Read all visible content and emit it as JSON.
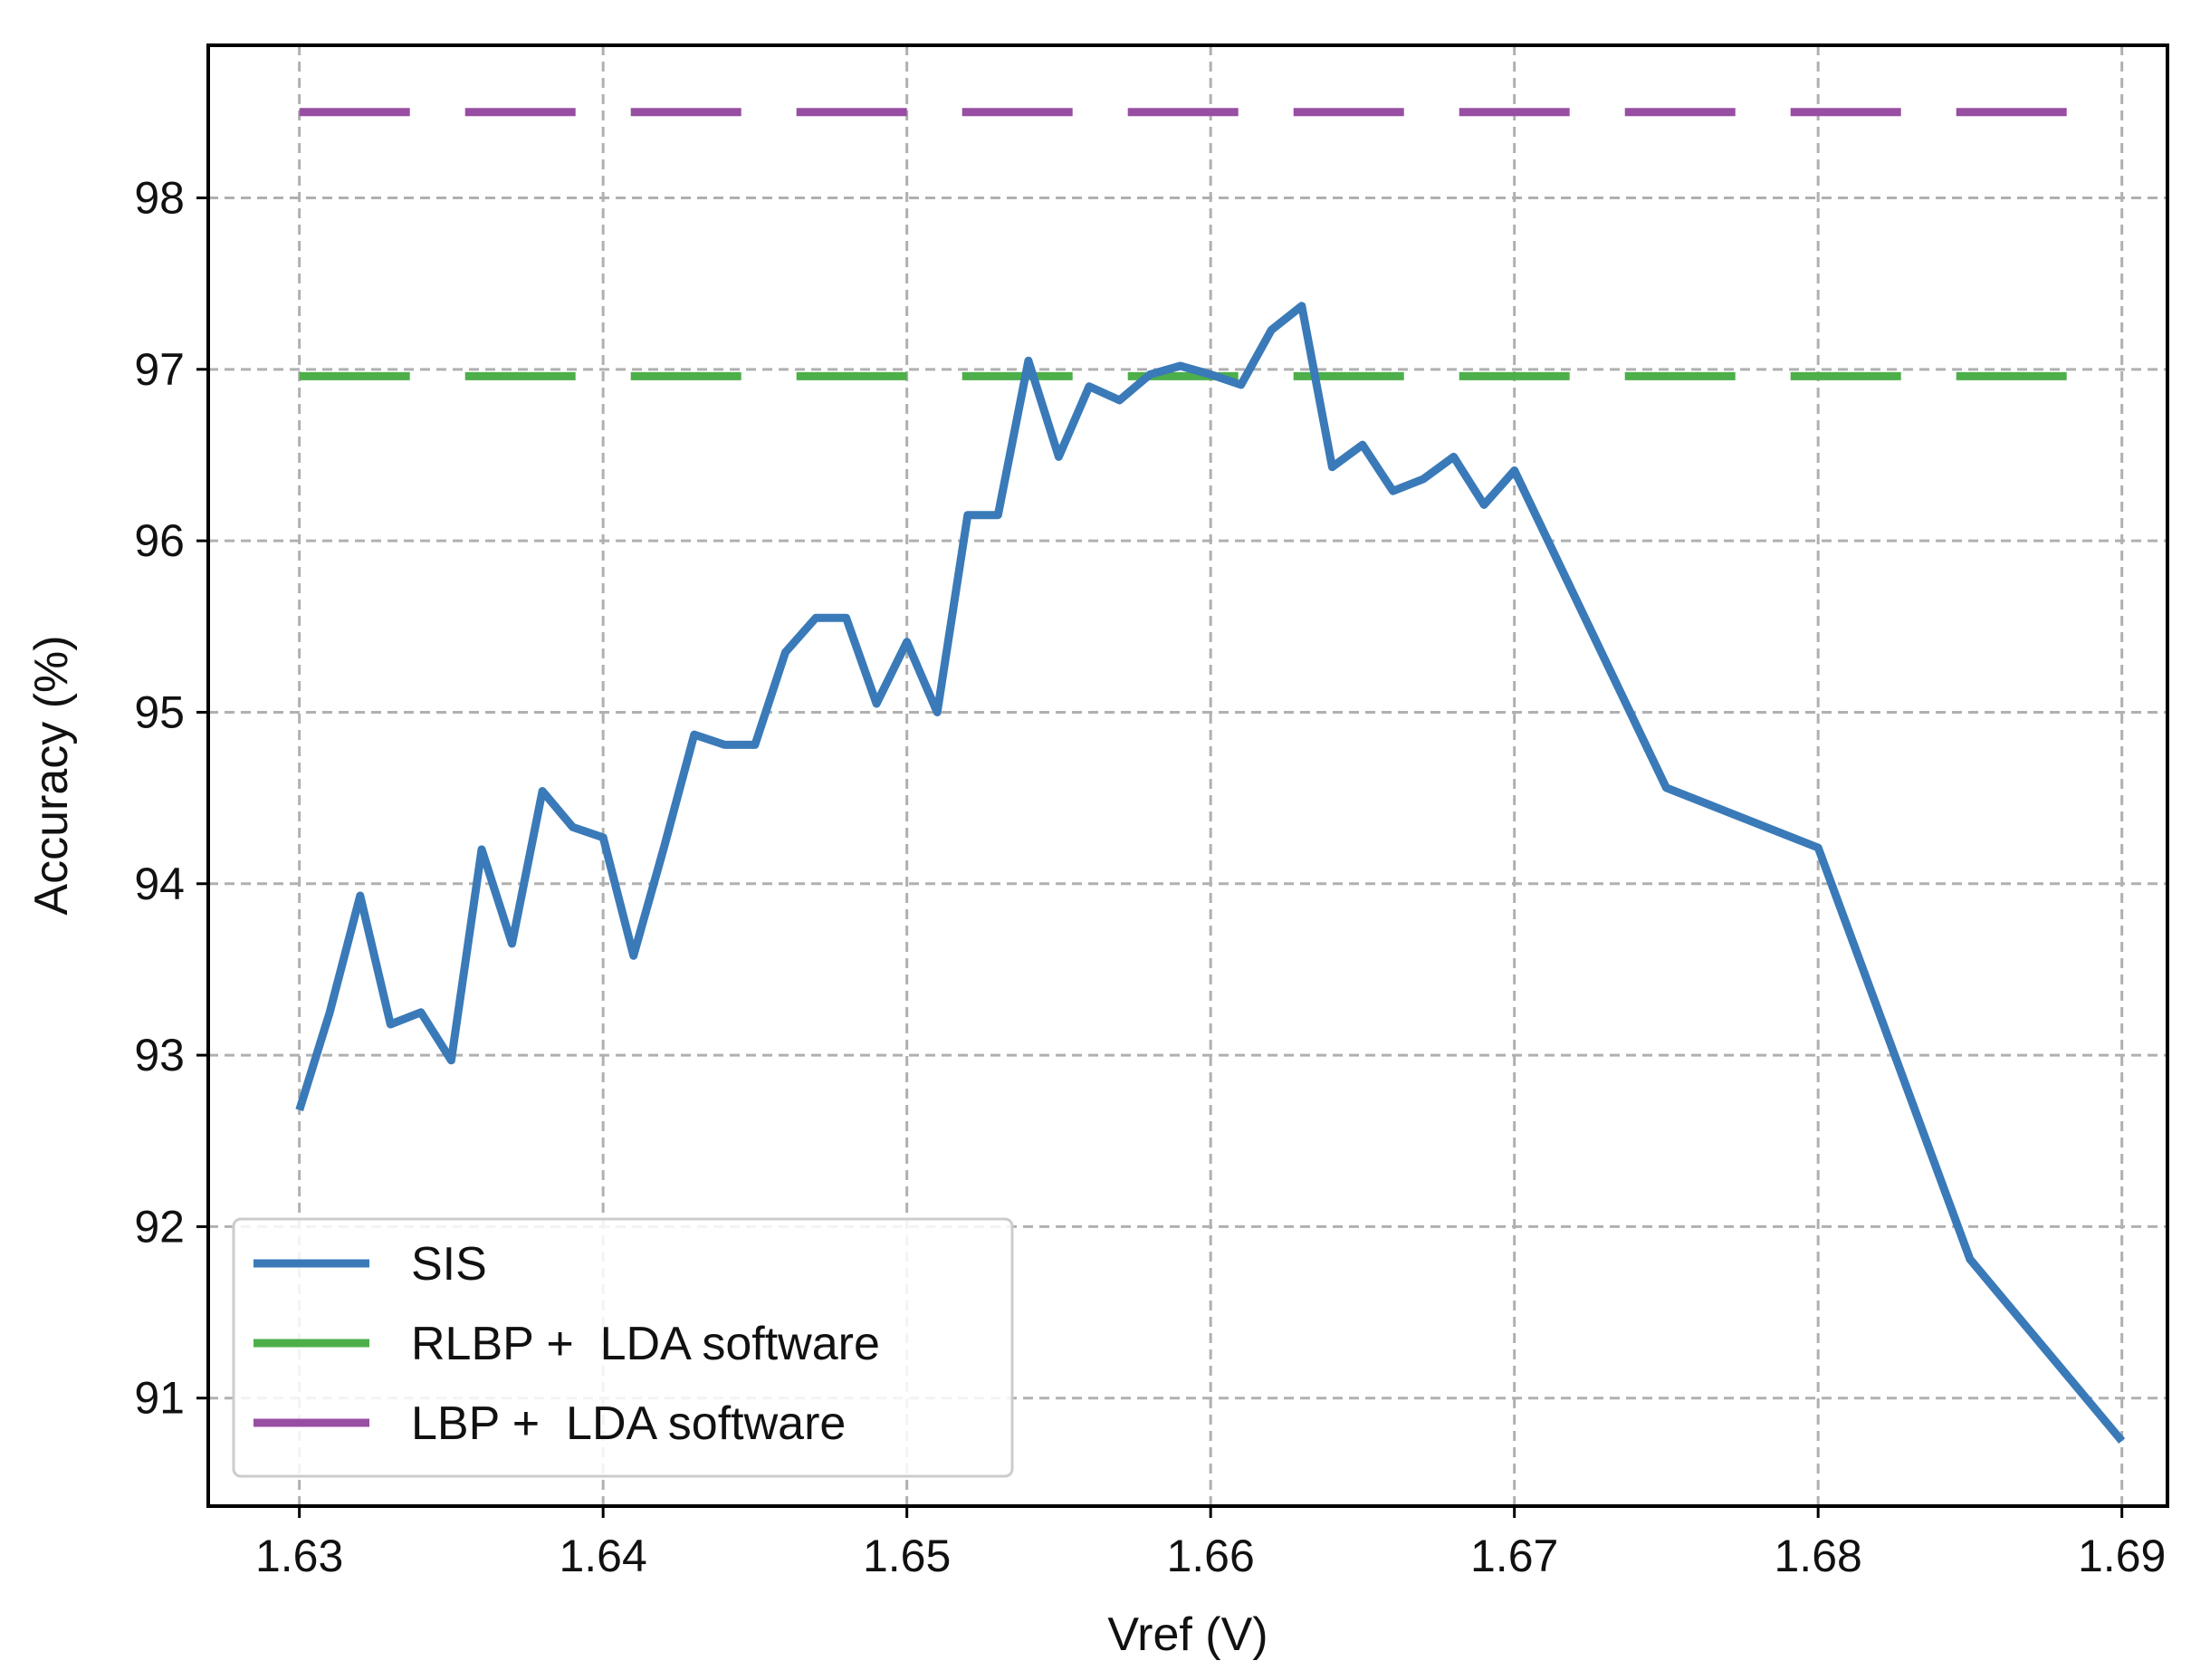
{
  "chart_data": {
    "type": "line",
    "title": "",
    "xlabel": "Vref (V)",
    "ylabel": "Accuracy (%)",
    "xlim": [
      1.627,
      1.6915
    ],
    "ylim": [
      90.37,
      98.89
    ],
    "xticks": [
      1.63,
      1.64,
      1.65,
      1.66,
      1.67,
      1.68,
      1.69
    ],
    "xtick_labels": [
      "1.63",
      "1.64",
      "1.65",
      "1.66",
      "1.67",
      "1.68",
      "1.69"
    ],
    "yticks": [
      91,
      92,
      93,
      94,
      95,
      96,
      97,
      98
    ],
    "ytick_labels": [
      "91",
      "92",
      "93",
      "94",
      "95",
      "96",
      "97",
      "98"
    ],
    "grid": true,
    "legend_position": "lower-left",
    "series": [
      {
        "name": "SIS",
        "color": "#3a7ab8",
        "style": "solid",
        "x": [
          1.63,
          1.631,
          1.632,
          1.633,
          1.634,
          1.635,
          1.636,
          1.637,
          1.638,
          1.639,
          1.64,
          1.641,
          1.642,
          1.643,
          1.644,
          1.645,
          1.646,
          1.647,
          1.648,
          1.649,
          1.65,
          1.651,
          1.652,
          1.653,
          1.654,
          1.655,
          1.656,
          1.657,
          1.658,
          1.659,
          1.66,
          1.661,
          1.662,
          1.663,
          1.664,
          1.665,
          1.666,
          1.667,
          1.668,
          1.669,
          1.67,
          1.675,
          1.68,
          1.685,
          1.69
        ],
        "y": [
          92.68,
          93.25,
          93.93,
          93.18,
          93.25,
          92.97,
          94.2,
          93.65,
          94.54,
          94.33,
          94.27,
          93.58,
          94.21,
          94.87,
          94.81,
          94.81,
          95.35,
          95.55,
          95.55,
          95.05,
          95.41,
          95.0,
          96.15,
          96.15,
          97.05,
          96.49,
          96.9,
          96.82,
          96.97,
          97.02,
          96.97,
          96.91,
          97.23,
          97.37,
          96.43,
          96.56,
          96.29,
          96.36,
          96.49,
          96.21,
          96.41,
          94.56,
          94.21,
          91.81,
          90.75
        ]
      },
      {
        "name": "RLBP +  LDA software",
        "color": "#4daf4a",
        "style": "dashed",
        "x": [
          1.63,
          1.69
        ],
        "y": [
          96.96,
          96.96
        ]
      },
      {
        "name": "LBP +  LDA software",
        "color": "#984ea3",
        "style": "dashed",
        "x": [
          1.63,
          1.69
        ],
        "y": [
          98.5,
          98.5
        ]
      }
    ]
  }
}
